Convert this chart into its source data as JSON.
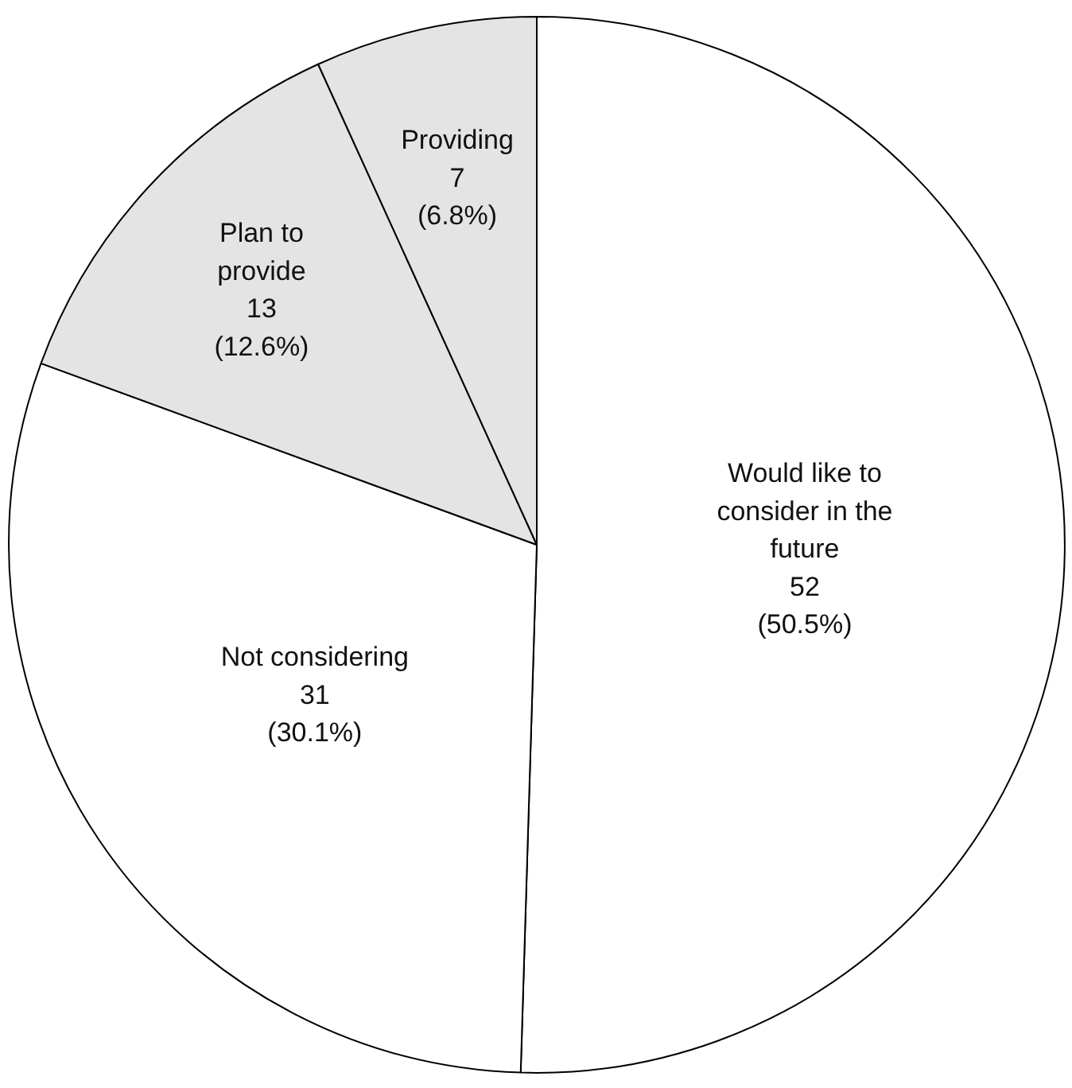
{
  "chart_data": {
    "type": "pie",
    "categories": [
      "Would like to consider in the future",
      "Not considering",
      "Plan to provide",
      "Providing"
    ],
    "values": [
      52,
      31,
      13,
      7
    ],
    "value_labels": [
      "52\n(50.5%)",
      "31\n(30.1%)",
      "13\n(12.6%)",
      "7\n(6.8%)"
    ],
    "colors": [
      "#ffffff",
      "#ffffff",
      "#e4e4e4",
      "#e4e4e4"
    ]
  }
}
